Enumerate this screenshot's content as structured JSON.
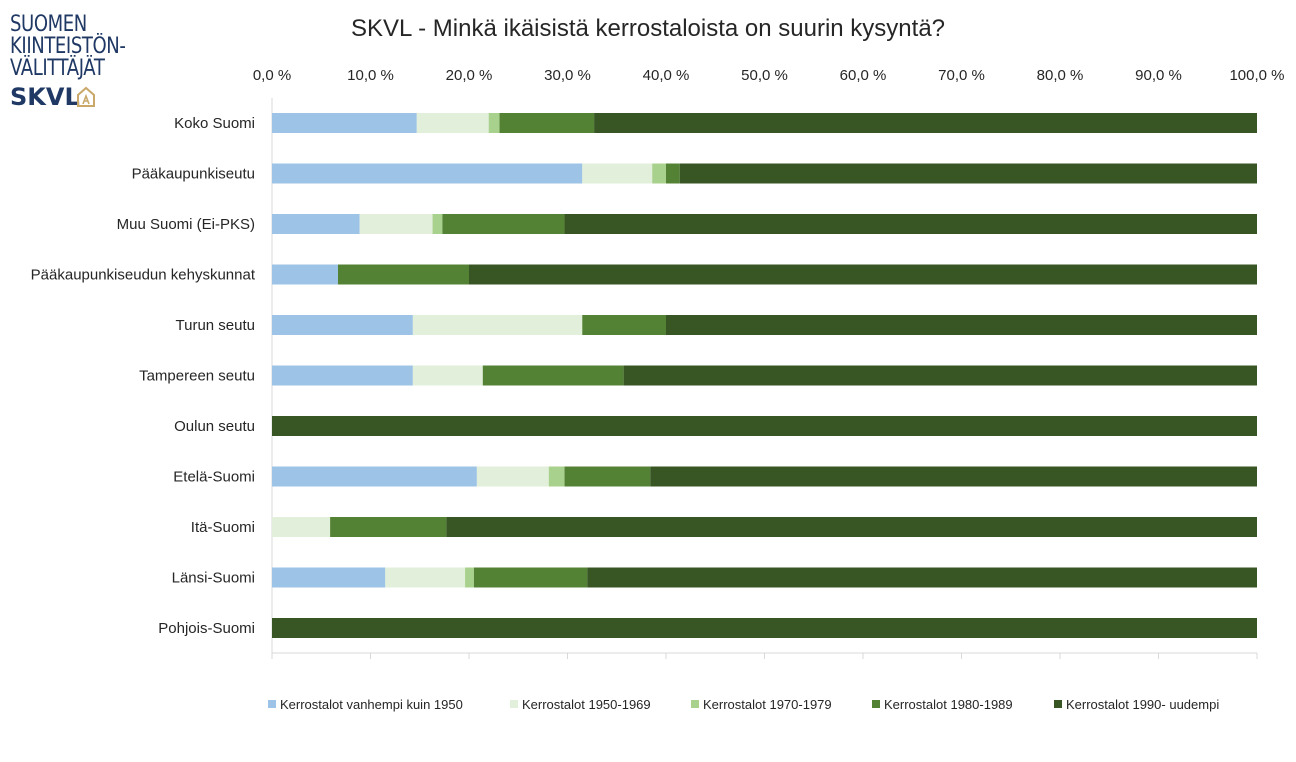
{
  "logo": {
    "lines": [
      "SUOMEN",
      "KIINTEISTÖN-",
      "VÄLITTÄJÄT"
    ],
    "brand": "SKVL"
  },
  "chart_data": {
    "type": "bar",
    "orientation": "horizontal",
    "stacked": true,
    "title": "SKVL - Minkä ikäisistä kerrostaloista on suurin kysyntä?",
    "xlim": [
      0,
      100
    ],
    "x_ticks": [
      "0,0 %",
      "10,0 %",
      "20,0 %",
      "30,0 %",
      "40,0 %",
      "50,0 %",
      "60,0 %",
      "70,0 %",
      "80,0 %",
      "90,0 %",
      "100,0 %"
    ],
    "x_axis_position": "top",
    "grid": false,
    "legend_position": "bottom",
    "categories": [
      "Koko Suomi",
      "Pääkaupunkiseutu",
      "Muu Suomi (Ei-PKS)",
      "Pääkaupunkiseudun kehyskunnat",
      "Turun seutu",
      "Tampereen seutu",
      "Oulun seutu",
      "Etelä-Suomi",
      "Itä-Suomi",
      "Länsi-Suomi",
      "Pohjois-Suomi"
    ],
    "series": [
      {
        "name": "Kerrostalot vanhempi kuin 1950",
        "color": "#9dc3e6",
        "values": [
          14.7,
          31.5,
          8.9,
          6.7,
          14.3,
          14.3,
          0,
          20.8,
          0,
          11.5,
          0
        ]
      },
      {
        "name": "Kerrostalot 1950-1969",
        "color": "#e2efda",
        "values": [
          7.3,
          7.1,
          7.4,
          0,
          17.2,
          7.1,
          0,
          7.3,
          5.9,
          8.1,
          0
        ]
      },
      {
        "name": "Kerrostalot 1970-1979",
        "color": "#a9d18e",
        "values": [
          1.1,
          1.4,
          1.0,
          0,
          0,
          0,
          0,
          1.6,
          0,
          0.9,
          0
        ]
      },
      {
        "name": "Kerrostalot 1980-1989",
        "color": "#548235",
        "values": [
          9.6,
          1.4,
          12.4,
          13.3,
          8.5,
          14.3,
          0,
          8.7,
          11.8,
          11.5,
          0
        ]
      },
      {
        "name": "Kerrostalot 1990- uudempi",
        "color": "#375623",
        "values": [
          67.3,
          58.6,
          70.3,
          80.0,
          60.0,
          64.3,
          100.0,
          61.6,
          82.3,
          68.0,
          100.0
        ]
      }
    ]
  }
}
